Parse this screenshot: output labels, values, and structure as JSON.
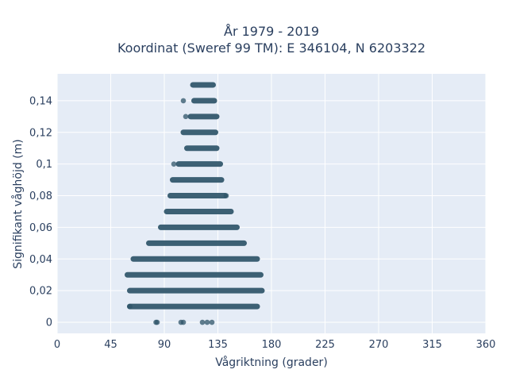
{
  "chart_data": {
    "type": "scatter",
    "title": "År 1979 - 2019",
    "subtitle": "Koordinat (Sweref 99 TM): E 346104, N 6203322",
    "xlabel": "Vågriktning (grader)",
    "ylabel": "Signifikant våghöjd (m)",
    "xlim": [
      0,
      360
    ],
    "ylim": [
      -0.007,
      0.157
    ],
    "x_ticks": [
      0,
      45,
      90,
      135,
      180,
      225,
      270,
      315,
      360
    ],
    "y_ticks": [
      0,
      0.02,
      0.04,
      0.06,
      0.08,
      0.1,
      0.12,
      0.14
    ],
    "y_tick_labels": [
      "0",
      "0,02",
      "0,04",
      "0,06",
      "0,08",
      "0,1",
      "0,12",
      "0,14"
    ],
    "grid": true,
    "bands": [
      {
        "y": 0.0,
        "x_min": 83,
        "x_max": 130,
        "points": [
          83,
          84,
          104,
          106,
          122,
          126,
          130
        ]
      },
      {
        "y": 0.01,
        "x_min": 61,
        "x_max": 168
      },
      {
        "y": 0.02,
        "x_min": 61,
        "x_max": 172
      },
      {
        "y": 0.03,
        "x_min": 59,
        "x_max": 171
      },
      {
        "y": 0.04,
        "x_min": 64,
        "x_max": 168
      },
      {
        "y": 0.05,
        "x_min": 77,
        "x_max": 157
      },
      {
        "y": 0.06,
        "x_min": 87,
        "x_max": 151
      },
      {
        "y": 0.07,
        "x_min": 92,
        "x_max": 146
      },
      {
        "y": 0.08,
        "x_min": 95,
        "x_max": 141
      },
      {
        "y": 0.09,
        "x_min": 97,
        "x_max": 138
      },
      {
        "y": 0.1,
        "x_min": 102,
        "x_max": 137
      },
      {
        "y": 0.11,
        "x_min": 109,
        "x_max": 134
      },
      {
        "y": 0.12,
        "x_min": 106,
        "x_max": 133
      },
      {
        "y": 0.13,
        "x_min": 112,
        "x_max": 134
      },
      {
        "y": 0.14,
        "x_min": 115,
        "x_max": 132
      },
      {
        "y": 0.15,
        "x_min": 114,
        "x_max": 131
      }
    ],
    "outliers": [
      {
        "x": 61,
        "y": 0.01
      },
      {
        "x": 98,
        "y": 0.1
      },
      {
        "x": 106,
        "y": 0.14
      },
      {
        "x": 108,
        "y": 0.13
      },
      {
        "x": 142,
        "y": 0.08
      }
    ],
    "colors": {
      "marker": "#2e5468",
      "plot_bg": "#e5ecf6",
      "grid": "#ffffff"
    }
  }
}
